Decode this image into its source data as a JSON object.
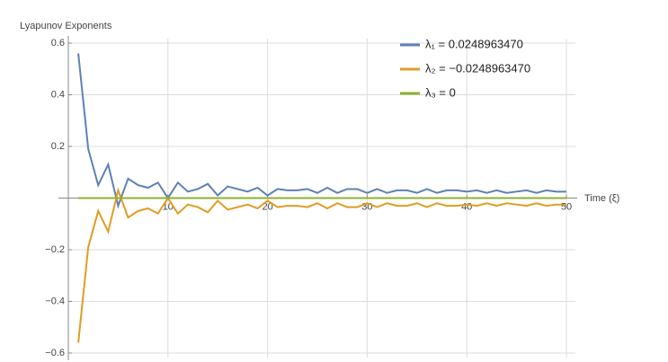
{
  "chart_data": {
    "type": "line",
    "y_label": "Lyapunov Exponents",
    "x_label": "Time (ξ)",
    "x": [
      1,
      2,
      3,
      4,
      5,
      6,
      7,
      8,
      9,
      10,
      11,
      12,
      13,
      14,
      15,
      16,
      17,
      18,
      19,
      20,
      21,
      22,
      23,
      24,
      25,
      26,
      27,
      28,
      29,
      30,
      31,
      32,
      33,
      34,
      35,
      36,
      37,
      38,
      39,
      40,
      41,
      42,
      43,
      44,
      45,
      46,
      47,
      48,
      49,
      50
    ],
    "series": [
      {
        "name": "λ₁ = 0.0248963470",
        "color": "#5e81b5",
        "values": [
          0.56,
          0.19,
          0.05,
          0.13,
          -0.03,
          0.075,
          0.05,
          0.04,
          0.06,
          0.0,
          0.06,
          0.025,
          0.035,
          0.055,
          0.01,
          0.045,
          0.035,
          0.025,
          0.04,
          0.01,
          0.035,
          0.03,
          0.03,
          0.035,
          0.02,
          0.04,
          0.02,
          0.035,
          0.035,
          0.02,
          0.035,
          0.02,
          0.03,
          0.03,
          0.02,
          0.035,
          0.02,
          0.03,
          0.03,
          0.025,
          0.03,
          0.02,
          0.03,
          0.02,
          0.025,
          0.03,
          0.02,
          0.03,
          0.025,
          0.025
        ]
      },
      {
        "name": "λ₂ = −0.0248963470",
        "color": "#e19c24",
        "values": [
          -0.56,
          -0.19,
          -0.05,
          -0.13,
          0.03,
          -0.075,
          -0.05,
          -0.04,
          -0.06,
          0.0,
          -0.06,
          -0.025,
          -0.035,
          -0.055,
          -0.01,
          -0.045,
          -0.035,
          -0.025,
          -0.04,
          -0.01,
          -0.035,
          -0.03,
          -0.03,
          -0.035,
          -0.02,
          -0.04,
          -0.02,
          -0.035,
          -0.035,
          -0.02,
          -0.035,
          -0.02,
          -0.03,
          -0.03,
          -0.02,
          -0.035,
          -0.02,
          -0.03,
          -0.03,
          -0.025,
          -0.03,
          -0.02,
          -0.03,
          -0.02,
          -0.025,
          -0.03,
          -0.02,
          -0.03,
          -0.025,
          -0.025
        ]
      },
      {
        "name": "λ₃ = 0",
        "color": "#8fb032",
        "values": [
          0,
          0,
          0,
          0,
          0,
          0,
          0,
          0,
          0,
          0,
          0,
          0,
          0,
          0,
          0,
          0,
          0,
          0,
          0,
          0,
          0,
          0,
          0,
          0,
          0,
          0,
          0,
          0,
          0,
          0,
          0,
          0,
          0,
          0,
          0,
          0,
          0,
          0,
          0,
          0,
          0,
          0,
          0,
          0,
          0,
          0,
          0,
          0,
          0,
          0
        ]
      }
    ],
    "xlim": [
      0,
      50
    ],
    "xticks": [
      10,
      20,
      30,
      40,
      50
    ],
    "ylim": [
      -0.6,
      0.6
    ],
    "yticks": [
      {
        "value": -0.6,
        "label": "−0.6"
      },
      {
        "value": -0.4,
        "label": "−0.4"
      },
      {
        "value": -0.2,
        "label": "−0.2"
      },
      0.2,
      0.4,
      0.6
    ],
    "grid": true,
    "legend": "top-right"
  }
}
